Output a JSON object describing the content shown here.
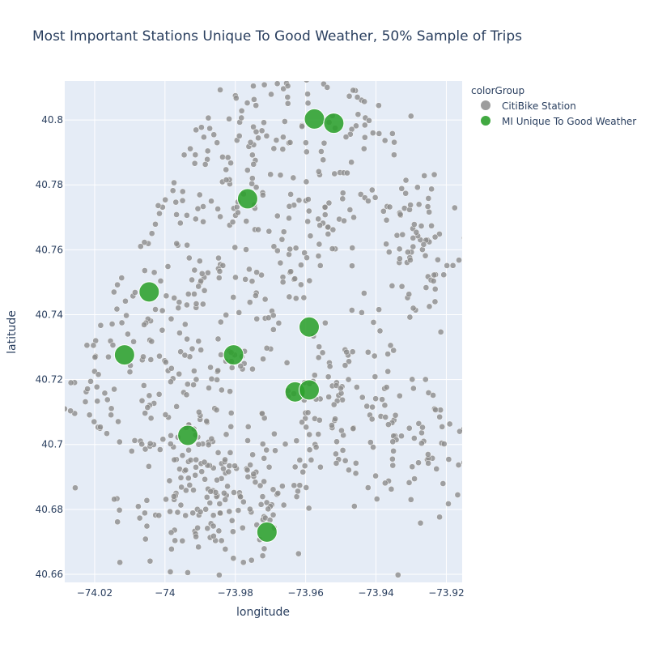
{
  "chart_data": {
    "type": "scatter",
    "title": "Most Important Stations Unique To Good Weather, 50% Sample of Trips",
    "xlabel": "longitude",
    "ylabel": "latitude",
    "xlim": [
      -74.0285,
      -73.9155
    ],
    "ylim": [
      40.6575,
      40.812
    ],
    "x_ticks": [
      -74.02,
      -74.0,
      -73.98,
      -73.96,
      -73.94,
      -73.92
    ],
    "x_tick_labels": [
      "−74.02",
      "−74",
      "−73.98",
      "−73.96",
      "−73.94",
      "−73.92"
    ],
    "y_ticks": [
      40.66,
      40.68,
      40.7,
      40.72,
      40.74,
      40.76,
      40.78,
      40.8
    ],
    "y_tick_labels": [
      "40.66",
      "40.68",
      "40.7",
      "40.72",
      "40.74",
      "40.76",
      "40.78",
      "40.8"
    ],
    "grid": true,
    "legend": {
      "title": "colorGroup",
      "placement": "top-right outside",
      "entries": [
        "CitiBike Station",
        "MI Unique To Good Weather"
      ]
    },
    "colors": {
      "plot_bg": "#e5ecf6",
      "grid": "#ffffff",
      "station": "#8c8c8c",
      "highlight": "#2ca02c"
    },
    "series": [
      {
        "name": "CitiBike Station",
        "approx_point_count": 750
      },
      {
        "name": "MI Unique To Good Weather",
        "points": [
          {
            "x": -73.9575,
            "y": 40.8003
          },
          {
            "x": -73.952,
            "y": 40.799
          },
          {
            "x": -73.9765,
            "y": 40.7757
          },
          {
            "x": -74.0045,
            "y": 40.747
          },
          {
            "x": -73.959,
            "y": 40.7362
          },
          {
            "x": -74.0115,
            "y": 40.7276
          },
          {
            "x": -73.9805,
            "y": 40.7276
          },
          {
            "x": -73.963,
            "y": 40.7162
          },
          {
            "x": -73.959,
            "y": 40.7168
          },
          {
            "x": -73.9935,
            "y": 40.7028
          },
          {
            "x": -73.971,
            "y": 40.673
          }
        ]
      }
    ]
  }
}
